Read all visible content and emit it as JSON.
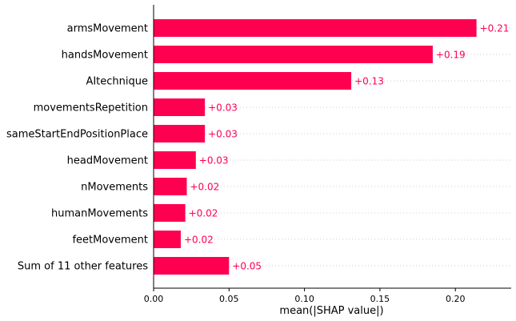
{
  "chart_data": {
    "type": "bar",
    "orientation": "horizontal",
    "categories": [
      "armsMovement",
      "handsMovement",
      "AItechnique",
      "movementsRepetition",
      "sameStartEndPositionPlace",
      "headMovement",
      "nMovements",
      "humanMovements",
      "feetMovement",
      "Sum of 11 other features"
    ],
    "values": [
      0.214,
      0.185,
      0.131,
      0.034,
      0.034,
      0.028,
      0.022,
      0.021,
      0.018,
      0.05
    ],
    "data_labels": [
      "+0.21",
      "+0.19",
      "+0.13",
      "+0.03",
      "+0.03",
      "+0.03",
      "+0.02",
      "+0.02",
      "+0.02",
      "+0.05"
    ],
    "xlabel": "mean(|SHAP value|)",
    "ylabel": "",
    "title": "",
    "xlim": [
      0,
      0.237
    ],
    "xticks": [
      0.0,
      0.05,
      0.1,
      0.15,
      0.2
    ],
    "xtick_labels": [
      "0.00",
      "0.05",
      "0.10",
      "0.15",
      "0.20"
    ],
    "grid": "dotted horizontal guide lines per row",
    "legend": "none",
    "bar_color": "#ff0051",
    "label_color": "#ff0051"
  }
}
